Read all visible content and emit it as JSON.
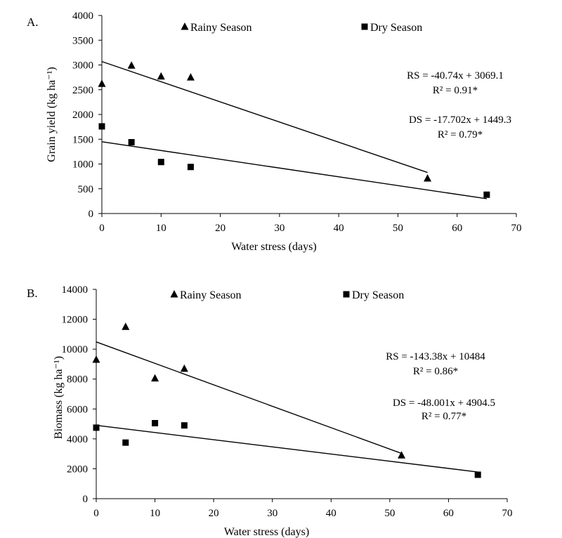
{
  "chart_data": [
    {
      "type": "scatter",
      "panel_label": "A.",
      "xlabel": "Water stress (days)",
      "ylabel": "Grain yield (kg ha⁻¹)",
      "xlim": [
        0,
        70
      ],
      "ylim": [
        0,
        4000
      ],
      "xticks": [
        "0",
        "10",
        "20",
        "30",
        "40",
        "50",
        "60",
        "70"
      ],
      "yticks": [
        "0",
        "500",
        "1000",
        "1500",
        "2000",
        "2500",
        "3000",
        "3500",
        "4000"
      ],
      "legend_location": "top",
      "series": [
        {
          "name": "Rainy Season",
          "marker": "triangle",
          "x": [
            0,
            5,
            10,
            15,
            55
          ],
          "y": [
            2620,
            2990,
            2770,
            2750,
            710
          ],
          "trend": {
            "slope": -40.74,
            "intercept": 3069.1,
            "x_range": [
              0,
              55
            ]
          },
          "equation": "RS = -40.74x + 3069.1",
          "r2": "R² = 0.91*"
        },
        {
          "name": "Dry Season",
          "marker": "square",
          "x": [
            0,
            5,
            10,
            15,
            65
          ],
          "y": [
            1760,
            1440,
            1040,
            940,
            380
          ],
          "trend": {
            "slope": -17.702,
            "intercept": 1449.3,
            "x_range": [
              0,
              65
            ]
          },
          "equation": "DS = -17.702x + 1449.3",
          "r2": "R² = 0.79*"
        }
      ]
    },
    {
      "type": "scatter",
      "panel_label": "B.",
      "xlabel": "Water stress (days)",
      "ylabel": "Biomass (kg ha⁻¹)",
      "xlim": [
        0,
        70
      ],
      "ylim": [
        0,
        14000
      ],
      "xticks": [
        "0",
        "10",
        "20",
        "30",
        "40",
        "50",
        "60",
        "70"
      ],
      "yticks": [
        "0",
        "2000",
        "4000",
        "6000",
        "8000",
        "10000",
        "12000",
        "14000"
      ],
      "legend_location": "top",
      "series": [
        {
          "name": "Rainy Season",
          "marker": "triangle",
          "x": [
            0,
            5,
            10,
            15,
            52
          ],
          "y": [
            9300,
            11500,
            8050,
            8700,
            2900
          ],
          "trend": {
            "slope": -143.38,
            "intercept": 10484,
            "x_range": [
              0,
              52
            ]
          },
          "equation": "RS = -143.38x + 10484",
          "r2": "R² = 0.86*"
        },
        {
          "name": "Dry Season",
          "marker": "square",
          "x": [
            0,
            5,
            10,
            15,
            65
          ],
          "y": [
            4750,
            3750,
            5050,
            4900,
            1600
          ],
          "trend": {
            "slope": -48.001,
            "intercept": 4904.5,
            "x_range": [
              0,
              65
            ]
          },
          "equation": "DS = -48.001x + 4904.5",
          "r2": "R² = 0.77*"
        }
      ]
    }
  ]
}
